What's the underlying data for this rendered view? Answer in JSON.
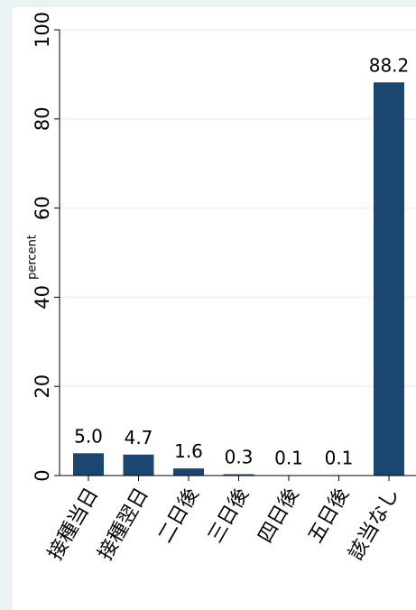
{
  "chart_data": {
    "type": "bar",
    "title": "",
    "xlabel": "",
    "ylabel": "percent",
    "categories": [
      "接種当日",
      "接種翌日",
      "二日後",
      "三日後",
      "四日後",
      "五日後",
      "該当なし"
    ],
    "values": [
      5.0,
      4.7,
      1.6,
      0.3,
      0.1,
      0.1,
      88.2
    ],
    "data_labels": [
      "5.0",
      "4.7",
      "1.6",
      "0.3",
      "0.1",
      "0.1",
      "88.2"
    ],
    "ylim": [
      0,
      100
    ],
    "yticks": [
      0,
      20,
      40,
      60,
      80,
      100
    ],
    "ytick_labels": [
      "0",
      "20",
      "40",
      "60",
      "80",
      "100"
    ],
    "grid": true,
    "legend": "none",
    "colors": {
      "bar": "#1c4672",
      "plot_background": "#ffffff",
      "outer_background": "#eaf2f3",
      "grid": "#eaf2f3"
    }
  }
}
